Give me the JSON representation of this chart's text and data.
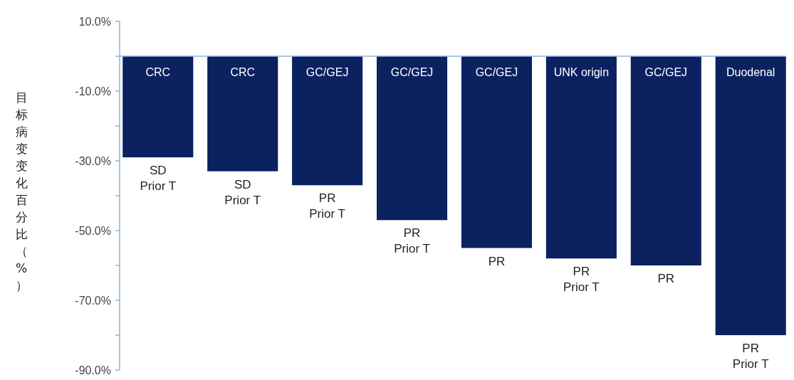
{
  "chart_data": {
    "type": "bar",
    "ylabel": "目标病变变化百分比（%）",
    "categories": [
      "CRC",
      "CRC",
      "GC/GEJ",
      "GC/GEJ",
      "GC/GEJ",
      "UNK origin",
      "GC/GEJ",
      "Duodenal"
    ],
    "values": [
      -29,
      -33,
      -37,
      -47,
      -55,
      -58,
      -60,
      -80
    ],
    "color": "#0b2160",
    "ylim": [
      -90,
      10
    ],
    "yticks": [
      {
        "value": 10,
        "label": "10.0%"
      },
      {
        "value": 0,
        "label": null
      },
      {
        "value": -10,
        "label": "-10.0%"
      },
      {
        "value": -20,
        "label": null
      },
      {
        "value": -30,
        "label": "-30.0%"
      },
      {
        "value": -40,
        "label": null
      },
      {
        "value": -50,
        "label": "-50.0%"
      },
      {
        "value": -60,
        "label": null
      },
      {
        "value": -70,
        "label": "-70.0%"
      },
      {
        "value": -80,
        "label": null
      },
      {
        "value": -90,
        "label": "-90.0%"
      }
    ],
    "annotations": [
      "SD\nPrior T",
      "SD\nPrior T",
      "PR\nPrior T",
      "PR\nPrior T",
      "PR",
      "PR\nPrior T",
      "PR",
      "PR\nPrior T"
    ]
  }
}
